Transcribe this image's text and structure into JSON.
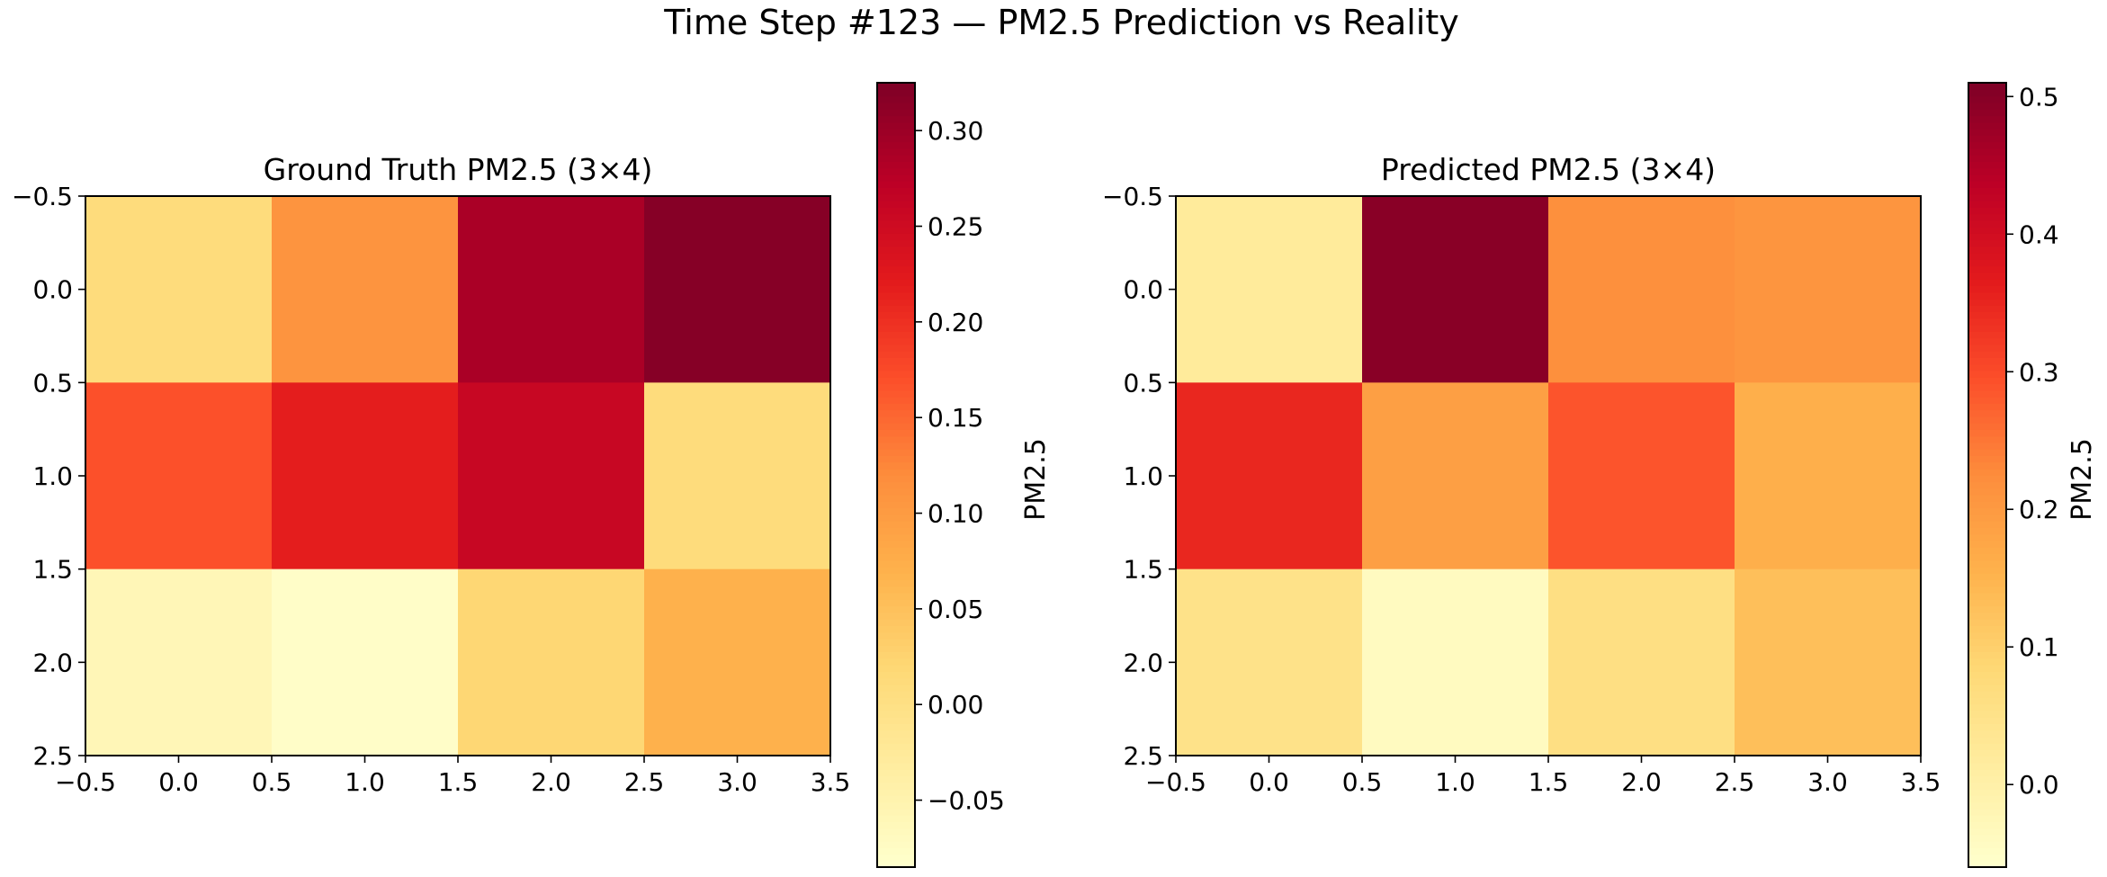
{
  "suptitle": "Time Step #123 — PM2.5 Prediction vs Reality",
  "colormap": [
    "#ffffcc",
    "#ffeda0",
    "#fed976",
    "#feb24c",
    "#fd8d3c",
    "#fc4e2a",
    "#e31a1c",
    "#bd0026",
    "#800026"
  ],
  "chart_data": [
    {
      "type": "heatmap",
      "title": "Ground Truth PM2.5 (3×4)",
      "xlim": [
        -0.5,
        3.5
      ],
      "ylim": [
        2.5,
        -0.5
      ],
      "xticks": [
        "−0.5",
        "0.0",
        "0.5",
        "1.0",
        "1.5",
        "2.0",
        "2.5",
        "3.0",
        "3.5"
      ],
      "yticks": [
        "−0.5",
        "0.0",
        "0.5",
        "1.0",
        "1.5",
        "2.0",
        "2.5"
      ],
      "values": [
        [
          0.01,
          0.11,
          0.29,
          0.32
        ],
        [
          0.17,
          0.22,
          0.26,
          0.01
        ],
        [
          -0.06,
          -0.08,
          0.02,
          0.07
        ]
      ],
      "colorbar": {
        "label": "PM2.5",
        "range": [
          -0.085,
          0.325
        ],
        "ticks": [
          {
            "value": 0.3,
            "label": "0.30"
          },
          {
            "value": 0.25,
            "label": "0.25"
          },
          {
            "value": 0.2,
            "label": "0.20"
          },
          {
            "value": 0.15,
            "label": "0.15"
          },
          {
            "value": 0.1,
            "label": "0.10"
          },
          {
            "value": 0.05,
            "label": "0.05"
          },
          {
            "value": 0.0,
            "label": "0.00"
          },
          {
            "value": -0.05,
            "label": "−0.05"
          }
        ]
      }
    },
    {
      "type": "heatmap",
      "title": "Predicted PM2.5 (3×4)",
      "xlim": [
        -0.5,
        3.5
      ],
      "ylim": [
        2.5,
        -0.5
      ],
      "xticks": [
        "−0.5",
        "0.0",
        "0.5",
        "1.0",
        "1.5",
        "2.0",
        "2.5",
        "3.0",
        "3.5"
      ],
      "yticks": [
        "−0.5",
        "0.0",
        "0.5",
        "1.0",
        "1.5",
        "2.0",
        "2.5"
      ],
      "values": [
        [
          0.02,
          0.5,
          0.22,
          0.21
        ],
        [
          0.35,
          0.19,
          0.29,
          0.16
        ],
        [
          0.05,
          -0.04,
          0.06,
          0.13
        ]
      ],
      "colorbar": {
        "label": "PM2.5",
        "range": [
          -0.06,
          0.51
        ],
        "ticks": [
          {
            "value": 0.5,
            "label": "0.5"
          },
          {
            "value": 0.4,
            "label": "0.4"
          },
          {
            "value": 0.3,
            "label": "0.3"
          },
          {
            "value": 0.2,
            "label": "0.2"
          },
          {
            "value": 0.1,
            "label": "0.1"
          },
          {
            "value": 0.0,
            "label": "0.0"
          }
        ]
      }
    }
  ]
}
